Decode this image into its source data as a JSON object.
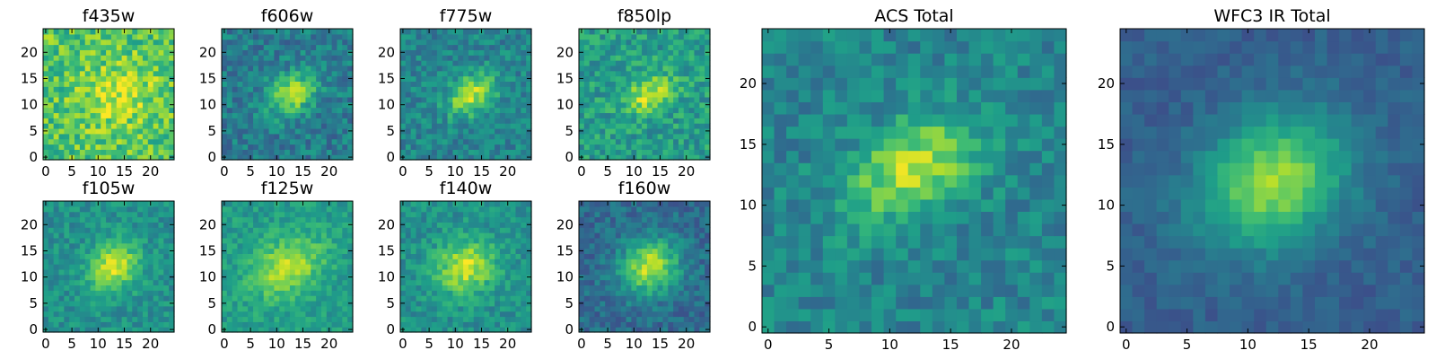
{
  "chart_data": [
    {
      "type": "heatmap",
      "title": "f435w",
      "xlim": [
        0,
        24
      ],
      "ylim": [
        0,
        24
      ],
      "x_ticks": [
        0,
        5,
        10,
        15,
        20
      ],
      "y_ticks": [
        0,
        5,
        10,
        15,
        20
      ],
      "colormap": "viridis",
      "grid": false,
      "peak": [
        14,
        12
      ],
      "peak_sigma": [
        5,
        4
      ],
      "peak_amplitude": 0.22,
      "background": 0.72,
      "noise": 0.18
    },
    {
      "type": "heatmap",
      "title": "f606w",
      "xlim": [
        0,
        24
      ],
      "ylim": [
        0,
        24
      ],
      "x_ticks": [
        0,
        5,
        10,
        15,
        20
      ],
      "y_ticks": [
        0,
        5,
        10,
        15,
        20
      ],
      "colormap": "viridis",
      "grid": false,
      "peak": [
        13,
        12
      ],
      "peak_sigma": [
        3.5,
        2.5
      ],
      "peak_amplitude": 0.45,
      "background": 0.42,
      "noise": 0.14
    },
    {
      "type": "heatmap",
      "title": "f775w",
      "xlim": [
        0,
        24
      ],
      "ylim": [
        0,
        24
      ],
      "x_ticks": [
        0,
        5,
        10,
        15,
        20
      ],
      "y_ticks": [
        0,
        5,
        10,
        15,
        20
      ],
      "colormap": "viridis",
      "grid": false,
      "peak": [
        13,
        12
      ],
      "peak_sigma": [
        3.5,
        2.5
      ],
      "peak_amplitude": 0.45,
      "background": 0.45,
      "noise": 0.13
    },
    {
      "type": "heatmap",
      "title": "f850lp",
      "xlim": [
        0,
        24
      ],
      "ylim": [
        0,
        24
      ],
      "x_ticks": [
        0,
        5,
        10,
        15,
        20
      ],
      "y_ticks": [
        0,
        5,
        10,
        15,
        20
      ],
      "colormap": "viridis",
      "grid": false,
      "peak": [
        13,
        12
      ],
      "peak_sigma": [
        3.5,
        2.5
      ],
      "peak_amplitude": 0.35,
      "background": 0.55,
      "noise": 0.15
    },
    {
      "type": "heatmap",
      "title": "f105w",
      "xlim": [
        0,
        24
      ],
      "ylim": [
        0,
        24
      ],
      "x_ticks": [
        0,
        5,
        10,
        15,
        20
      ],
      "y_ticks": [
        0,
        5,
        10,
        15,
        20
      ],
      "colormap": "viridis",
      "grid": false,
      "peak": [
        13,
        12
      ],
      "peak_sigma": [
        3.5,
        3
      ],
      "peak_amplitude": 0.45,
      "background": 0.5,
      "noise": 0.11
    },
    {
      "type": "heatmap",
      "title": "f125w",
      "xlim": [
        0,
        24
      ],
      "ylim": [
        0,
        24
      ],
      "x_ticks": [
        0,
        5,
        10,
        15,
        20
      ],
      "y_ticks": [
        0,
        5,
        10,
        15,
        20
      ],
      "colormap": "viridis",
      "grid": false,
      "peak": [
        12,
        12
      ],
      "peak_sigma": [
        5,
        3.5
      ],
      "peak_amplitude": 0.35,
      "background": 0.55,
      "noise": 0.1
    },
    {
      "type": "heatmap",
      "title": "f140w",
      "xlim": [
        0,
        24
      ],
      "ylim": [
        0,
        24
      ],
      "x_ticks": [
        0,
        5,
        10,
        15,
        20
      ],
      "y_ticks": [
        0,
        5,
        10,
        15,
        20
      ],
      "colormap": "viridis",
      "grid": false,
      "peak": [
        12,
        12
      ],
      "peak_sigma": [
        4,
        3.5
      ],
      "peak_amplitude": 0.42,
      "background": 0.5,
      "noise": 0.11
    },
    {
      "type": "heatmap",
      "title": "f160w",
      "xlim": [
        0,
        24
      ],
      "ylim": [
        0,
        24
      ],
      "x_ticks": [
        0,
        5,
        10,
        15,
        20
      ],
      "y_ticks": [
        0,
        5,
        10,
        15,
        20
      ],
      "colormap": "viridis",
      "grid": false,
      "peak": [
        13,
        12
      ],
      "peak_sigma": [
        4,
        3.5
      ],
      "peak_amplitude": 0.55,
      "background": 0.35,
      "noise": 0.11
    },
    {
      "type": "heatmap",
      "title": "ACS Total",
      "xlim": [
        0,
        24
      ],
      "ylim": [
        0,
        24
      ],
      "x_ticks": [
        0,
        5,
        10,
        15,
        20
      ],
      "y_ticks": [
        0,
        5,
        10,
        15,
        20
      ],
      "colormap": "viridis",
      "grid": false,
      "peak": [
        12,
        13
      ],
      "peak_sigma": [
        4,
        2.5
      ],
      "peak_amplitude": 0.45,
      "background": 0.45,
      "noise": 0.12
    },
    {
      "type": "heatmap",
      "title": "WFC3 IR Total",
      "xlim": [
        0,
        24
      ],
      "ylim": [
        0,
        24
      ],
      "x_ticks": [
        0,
        5,
        10,
        15,
        20
      ],
      "y_ticks": [
        0,
        5,
        10,
        15,
        20
      ],
      "colormap": "viridis",
      "grid": false,
      "peak": [
        12,
        12
      ],
      "peak_sigma": [
        4.5,
        3.5
      ],
      "peak_amplitude": 0.55,
      "background": 0.3,
      "noise": 0.06
    }
  ]
}
